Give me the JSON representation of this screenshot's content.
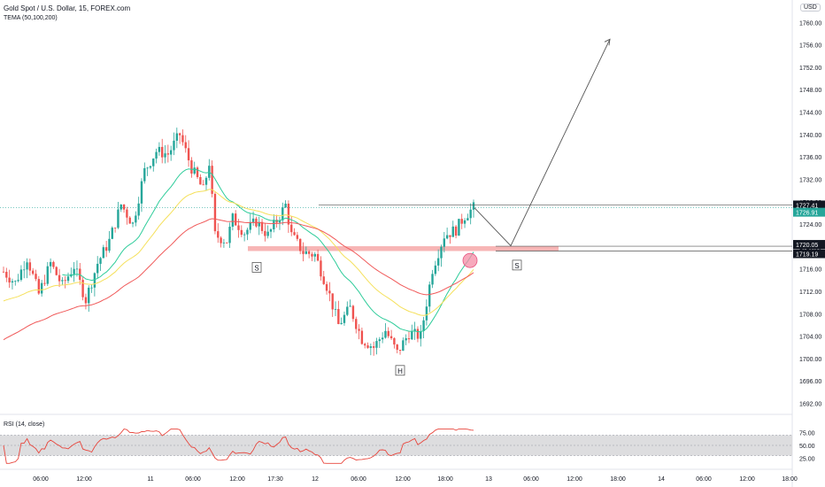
{
  "header": {
    "symbol_title": "Gold Spot / U.S. Dollar, 15, FOREX.com",
    "indicator_label": "TEMA (50,100,200)",
    "currency": "USD"
  },
  "rsi_panel": {
    "label": "RSI (14, close)",
    "ticks": [
      "75.00",
      "50.00",
      "25.00"
    ]
  },
  "colors": {
    "up_candle": "#26a69a",
    "down_candle": "#ef5350",
    "tema_fast": "#2ecc9a",
    "tema_mid": "#f5e05a",
    "tema_slow": "#f05a5a",
    "rsi_line": "#e8453c",
    "rsi_band": "#d9d9dc",
    "zone": "#f5a3a3"
  },
  "chart_data": {
    "type": "candlestick",
    "title": "Gold Spot / U.S. Dollar, 15, FOREX.com",
    "y_ticks": [
      "1760.00",
      "1756.00",
      "1752.00",
      "1748.00",
      "1744.00",
      "1740.00",
      "1736.00",
      "1732.00",
      "1728.00",
      "1724.00",
      "1720.00",
      "1716.00",
      "1712.00",
      "1708.00",
      "1704.00",
      "1700.00",
      "1696.00",
      "1692.00"
    ],
    "ylim": [
      1690.5,
      1764
    ],
    "x_ticks": [
      "06:00",
      "12:00",
      "11",
      "06:00",
      "12:00",
      "17:30",
      "12",
      "06:00",
      "12:00",
      "18:00",
      "13",
      "06:00",
      "12:00",
      "18:00",
      "14",
      "06:00",
      "12:00",
      "18:00"
    ],
    "price_labels": [
      {
        "text": "1727.41",
        "value": 1727.41,
        "style": "dark"
      },
      {
        "text": "1726.91",
        "value": 1726.91,
        "style": "green"
      },
      {
        "text": "1720.05",
        "value": 1720.05,
        "style": "dark"
      },
      {
        "text": "1719.19",
        "value": 1719.19,
        "style": "dark"
      }
    ],
    "annotations": [
      "S",
      "H",
      "S"
    ],
    "key_prices": {
      "start_open": 1715.5,
      "first_low": 1713.6,
      "peak": 1740.2,
      "left_shoulder_low": 1719.5,
      "neckline_high": 1727.4,
      "head_low": 1699.5,
      "last_close": 1726.9,
      "support_zone": [
        1719.19,
        1720.05
      ],
      "projected_target": 1757.0
    }
  }
}
